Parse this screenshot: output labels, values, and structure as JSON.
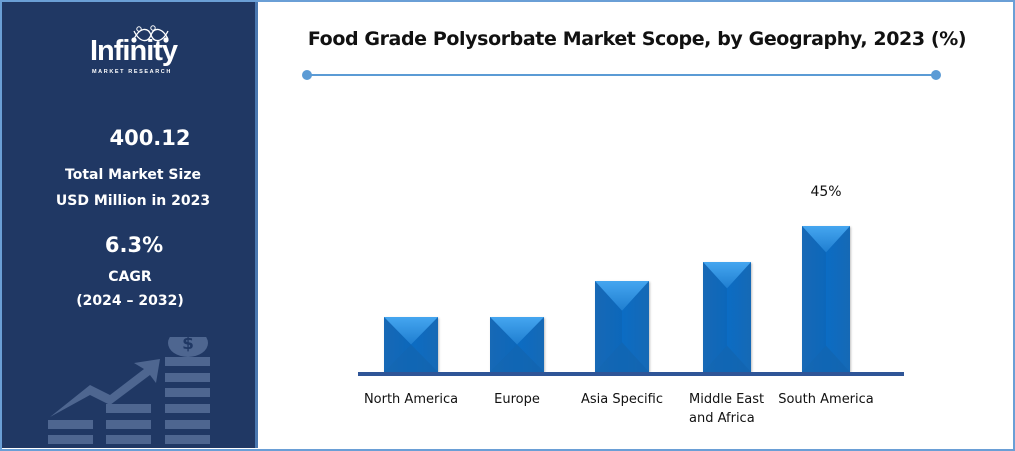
{
  "sidebar": {
    "logo": {
      "word": "Infinity",
      "sub": "MARKET RESEARCH"
    },
    "market_size_value": "400.12",
    "market_size_label_1": "Total Market Size",
    "market_size_label_2": "USD Million in 2023",
    "cagr_value": "6.3%",
    "cagr_label": "CAGR",
    "cagr_period": "(2024 – 2032)",
    "decor_icon": "growth-chart-coins-icon"
  },
  "colors": {
    "sidebar_bg": "#203864",
    "bar": "#0b6cc4",
    "bar_highlight": "#3a9ae6",
    "axis": "#2f5597",
    "title_rule": "#5b9bd5",
    "frame": "#6a9fd6"
  },
  "chart_data": {
    "type": "bar",
    "title": "Food Grade Polysorbate Market Scope, by Geography, 2023 (%)",
    "categories": [
      "North America",
      "Europe",
      "Asia Specific",
      "Middle East and Africa",
      "South America"
    ],
    "category_lines": [
      [
        "North America"
      ],
      [
        "Europe"
      ],
      [
        "Asia Specific"
      ],
      [
        "Middle East",
        "and Africa"
      ],
      [
        "South America"
      ]
    ],
    "values": [
      17,
      17,
      28,
      34,
      45
    ],
    "data_labels": [
      null,
      null,
      null,
      null,
      "45%"
    ],
    "xlabel": "",
    "ylabel": "",
    "ylim": [
      0,
      50
    ],
    "grid": false,
    "legend": "none"
  }
}
